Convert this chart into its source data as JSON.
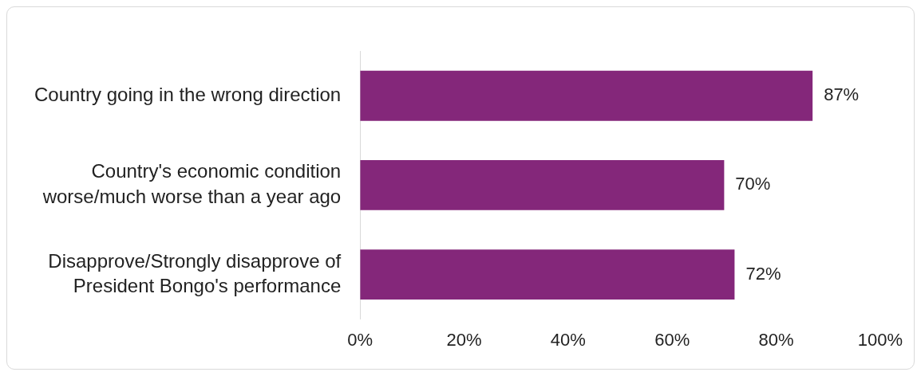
{
  "chart_data": {
    "type": "bar",
    "orientation": "horizontal",
    "categories": [
      "Country going in the wrong direction",
      "Country's economic condition worse/much worse than a year ago",
      "Disapprove/Strongly disapprove of President Bongo's performance"
    ],
    "values": [
      87,
      70,
      72
    ],
    "color": "#84277a",
    "value_labels": [
      "87%",
      "70%",
      "72%"
    ],
    "xlim": [
      0,
      100
    ],
    "xticks": [
      {
        "value": 0,
        "label": "0%"
      },
      {
        "value": 20,
        "label": "20%"
      },
      {
        "value": 40,
        "label": "40%"
      },
      {
        "value": 60,
        "label": "60%"
      },
      {
        "value": 80,
        "label": "80%"
      },
      {
        "value": 100,
        "label": "100%"
      }
    ],
    "grid": false,
    "legend": false
  }
}
